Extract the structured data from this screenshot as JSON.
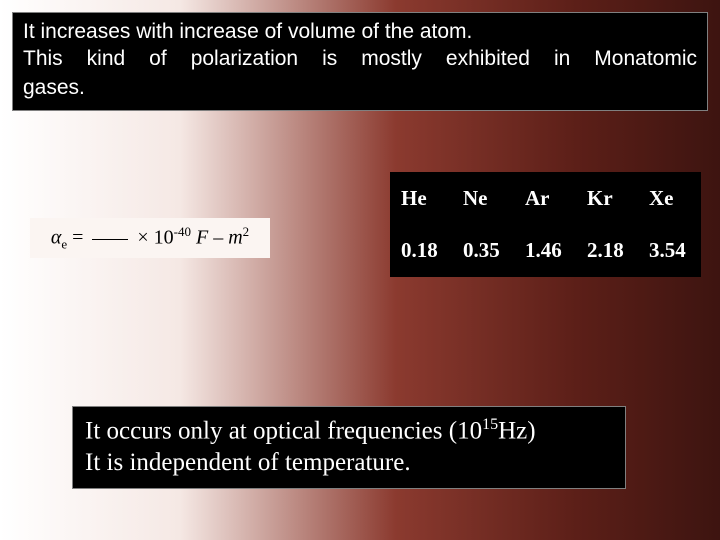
{
  "top_text": {
    "line1": "It increases with increase of volume of the atom.",
    "line2": "This kind of polarization is mostly exhibited in Monatomic",
    "line3": "gases."
  },
  "formula": {
    "alpha_symbol": "α",
    "subscript": "e",
    "equals": " = ",
    "times": " × 10",
    "exp": "-40",
    "units1": " F – m",
    "units_exp": "2"
  },
  "table": {
    "headers": [
      "He",
      "Ne",
      "Ar",
      "Kr",
      "Xe"
    ],
    "values": [
      "0.18",
      "0.35",
      "1.46",
      "2.18",
      "3.54"
    ]
  },
  "bottom_text": {
    "line1_a": "It occurs only at optical frequencies (10",
    "line1_exp": "15",
    "line1_b": "Hz)",
    "line2": "It is independent of temperature."
  },
  "colors": {
    "box_bg": "#000000",
    "box_text": "#ffffff",
    "table_border": "#000000",
    "table_bg": "#000000",
    "table_text": "#ffffff",
    "gradient_start": "#ffffff",
    "gradient_end": "#3d1410"
  }
}
